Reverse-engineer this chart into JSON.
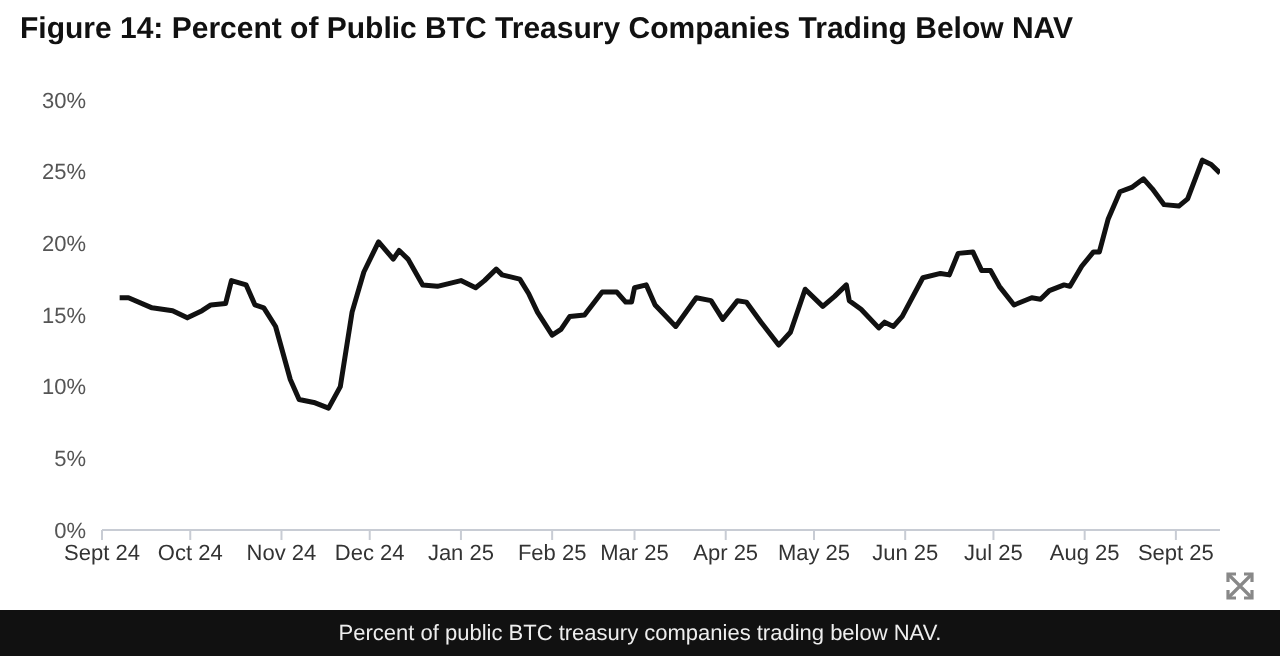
{
  "chart_data": {
    "type": "line",
    "title": "Figure 14: Percent of Public BTC Treasury Companies Trading Below NAV",
    "annotations": [
      "Percent of public BTC treasury companies trading below NAV."
    ],
    "x": [
      "2024-09-07",
      "2024-09-10",
      "2024-09-18",
      "2024-09-25",
      "2024-09-30",
      "2024-10-05",
      "2024-10-08",
      "2024-10-13",
      "2024-10-15",
      "2024-10-20",
      "2024-10-23",
      "2024-10-26",
      "2024-10-30",
      "2024-11-04",
      "2024-11-07",
      "2024-11-12",
      "2024-11-17",
      "2024-11-21",
      "2024-11-25",
      "2024-11-29",
      "2024-12-04",
      "2024-12-09",
      "2024-12-11",
      "2024-12-14",
      "2024-12-19",
      "2024-12-24",
      "2025-01-01",
      "2025-01-06",
      "2025-01-09",
      "2025-01-13",
      "2025-01-15",
      "2025-01-21",
      "2025-01-24",
      "2025-01-27",
      "2025-02-01",
      "2025-02-04",
      "2025-02-07",
      "2025-02-12",
      "2025-02-18",
      "2025-02-23",
      "2025-02-26",
      "2025-02-28",
      "2025-03-01",
      "2025-03-05",
      "2025-03-08",
      "2025-03-15",
      "2025-03-22",
      "2025-03-27",
      "2025-03-31",
      "2025-04-05",
      "2025-04-08",
      "2025-04-13",
      "2025-04-19",
      "2025-04-23",
      "2025-04-28",
      "2025-05-04",
      "2025-05-08",
      "2025-05-12",
      "2025-05-13",
      "2025-05-17",
      "2025-05-23",
      "2025-05-25",
      "2025-05-28",
      "2025-05-31",
      "2025-06-07",
      "2025-06-13",
      "2025-06-16",
      "2025-06-19",
      "2025-06-24",
      "2025-06-27",
      "2025-06-30",
      "2025-07-03",
      "2025-07-08",
      "2025-07-14",
      "2025-07-17",
      "2025-07-20",
      "2025-07-25",
      "2025-07-27",
      "2025-07-31",
      "2025-08-04",
      "2025-08-06",
      "2025-08-09",
      "2025-08-13",
      "2025-08-17",
      "2025-08-21",
      "2025-08-24",
      "2025-08-28",
      "2025-09-02",
      "2025-09-05",
      "2025-09-10",
      "2025-09-13",
      "2025-09-16"
    ],
    "series": [
      {
        "color": "#111111",
        "values": [
          16.2,
          16.2,
          15.5,
          15.3,
          14.8,
          15.3,
          15.7,
          15.8,
          17.4,
          17.1,
          15.7,
          15.5,
          14.2,
          10.5,
          9.1,
          8.9,
          8.5,
          10.0,
          15.2,
          18.0,
          20.1,
          18.9,
          19.5,
          18.9,
          17.1,
          17.0,
          17.4,
          16.9,
          17.4,
          18.2,
          17.8,
          17.5,
          16.5,
          15.2,
          13.6,
          14.0,
          14.9,
          15.0,
          16.6,
          16.6,
          15.9,
          15.9,
          16.9,
          17.1,
          15.7,
          14.2,
          16.2,
          16.0,
          14.7,
          16.0,
          15.9,
          14.5,
          12.9,
          13.8,
          16.8,
          15.6,
          16.3,
          17.1,
          16.0,
          15.4,
          14.1,
          14.5,
          14.2,
          14.9,
          17.6,
          17.9,
          17.8,
          19.3,
          19.4,
          18.1,
          18.1,
          17.0,
          15.7,
          16.2,
          16.1,
          16.7,
          17.1,
          17.0,
          18.4,
          19.4,
          19.4,
          21.7,
          23.6,
          23.9,
          24.5,
          23.8,
          22.7,
          22.6,
          23.1,
          25.8,
          25.5,
          24.9
        ]
      }
    ],
    "xlim": [
      "2024-09-01",
      "2025-09-16"
    ],
    "xticks": [
      {
        "value": "2024-09-01",
        "label": "Sept 24"
      },
      {
        "value": "2024-10-01",
        "label": "Oct 24"
      },
      {
        "value": "2024-11-01",
        "label": "Nov 24"
      },
      {
        "value": "2024-12-01",
        "label": "Dec 24"
      },
      {
        "value": "2025-01-01",
        "label": "Jan 25"
      },
      {
        "value": "2025-02-01",
        "label": "Feb 25"
      },
      {
        "value": "2025-03-01",
        "label": "Mar 25"
      },
      {
        "value": "2025-04-01",
        "label": "Apr 25"
      },
      {
        "value": "2025-05-01",
        "label": "May 25"
      },
      {
        "value": "2025-06-01",
        "label": "Jun 25"
      },
      {
        "value": "2025-07-01",
        "label": "Jul 25"
      },
      {
        "value": "2025-08-01",
        "label": "Aug 25"
      },
      {
        "value": "2025-09-01",
        "label": "Sept 25"
      }
    ],
    "ylim": [
      0,
      30
    ],
    "yticks": [
      {
        "value": 0,
        "label": "0%"
      },
      {
        "value": 5,
        "label": "5%"
      },
      {
        "value": 10,
        "label": "10%"
      },
      {
        "value": 15,
        "label": "15%"
      },
      {
        "value": 20,
        "label": "20%"
      },
      {
        "value": 25,
        "label": "25%"
      },
      {
        "value": 30,
        "label": "30%"
      }
    ],
    "marker": "none"
  }
}
